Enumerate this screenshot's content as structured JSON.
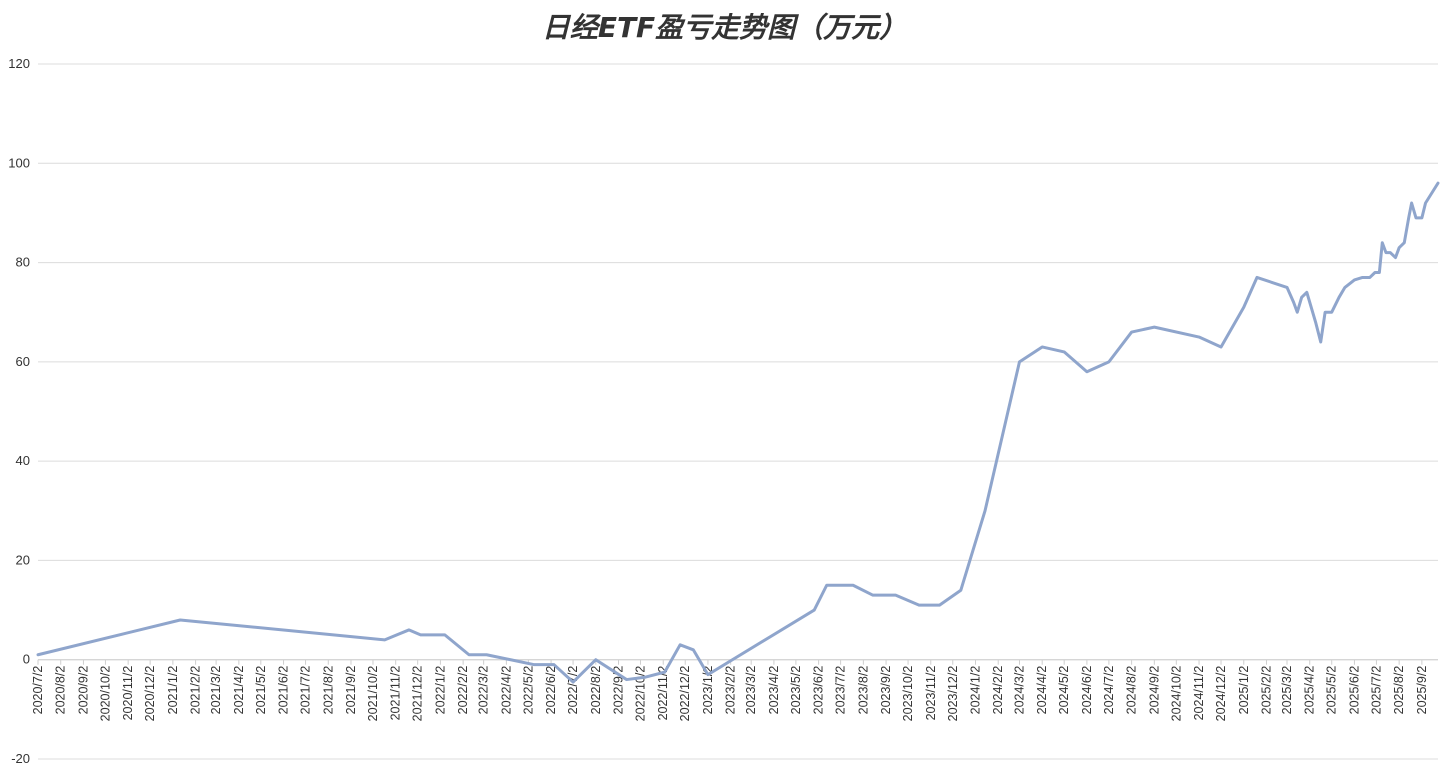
{
  "chart_data": {
    "type": "line",
    "title": "日经ETF盈亏走势图（万元）",
    "xlabel": "",
    "ylabel": "",
    "ylim": [
      -20,
      120
    ],
    "yticks": [
      "-20",
      "0",
      "20",
      "40",
      "60",
      "80",
      "100",
      "120"
    ],
    "grid": true,
    "line_color": "#8fa5cc",
    "categories": [
      "2020/7/2",
      "2020/8/2",
      "2020/9/2",
      "2020/10/2",
      "2020/11/2",
      "2020/12/2",
      "2021/1/2",
      "2021/2/2",
      "2021/3/2",
      "2021/4/2",
      "2021/5/2",
      "2021/6/2",
      "2021/7/2",
      "2021/8/2",
      "2021/9/2",
      "2021/10/2",
      "2021/11/2",
      "2021/12/2",
      "2022/1/2",
      "2022/2/2",
      "2022/3/2",
      "2022/4/2",
      "2022/5/2",
      "2022/6/2",
      "2022/7/2",
      "2022/8/2",
      "2022/9/2",
      "2022/10/2",
      "2022/11/2",
      "2022/12/2",
      "2023/1/2",
      "2023/2/2",
      "2023/3/2",
      "2023/4/2",
      "2023/5/2",
      "2023/6/2",
      "2023/7/2",
      "2023/8/2",
      "2023/9/2",
      "2023/10/2",
      "2023/11/2",
      "2023/12/2",
      "2024/1/2",
      "2024/2/2",
      "2024/3/2",
      "2024/4/2",
      "2024/5/2",
      "2024/6/2",
      "2024/7/2",
      "2024/8/2",
      "2024/9/2",
      "2024/10/2",
      "2024/11/2",
      "2024/12/2",
      "2025/1/2",
      "2025/2/2",
      "2025/3/2",
      "2025/4/2",
      "2025/5/2",
      "2025/6/2",
      "2025/7/2",
      "2025/8/2",
      "2025/9/2"
    ],
    "series": [
      {
        "points": [
          {
            "x": "2020/7/2",
            "y": 1
          },
          {
            "x": "2021/1/12",
            "y": 8
          },
          {
            "x": "2021/10/18",
            "y": 4
          },
          {
            "x": "2021/11/20",
            "y": 6
          },
          {
            "x": "2021/12/6",
            "y": 5
          },
          {
            "x": "2022/1/8",
            "y": 5
          },
          {
            "x": "2022/2/10",
            "y": 1
          },
          {
            "x": "2022/3/6",
            "y": 1
          },
          {
            "x": "2022/5/10",
            "y": -1
          },
          {
            "x": "2022/6/6",
            "y": -1
          },
          {
            "x": "2022/7/2",
            "y": -4.5
          },
          {
            "x": "2022/8/2",
            "y": 0
          },
          {
            "x": "2022/9/13",
            "y": -4
          },
          {
            "x": "2022/10/9",
            "y": -3.5
          },
          {
            "x": "2022/11/4",
            "y": -2.5
          },
          {
            "x": "2022/11/25",
            "y": 3
          },
          {
            "x": "2022/12/13",
            "y": 2
          },
          {
            "x": "2023/1/2",
            "y": -3
          },
          {
            "x": "2023/5/27",
            "y": 10
          },
          {
            "x": "2023/6/13",
            "y": 15
          },
          {
            "x": "2023/7/19",
            "y": 15
          },
          {
            "x": "2023/8/15",
            "y": 13
          },
          {
            "x": "2023/9/15",
            "y": 13
          },
          {
            "x": "2023/10/17",
            "y": 11
          },
          {
            "x": "2023/11/14",
            "y": 11
          },
          {
            "x": "2023/12/13",
            "y": 14
          },
          {
            "x": "2024/1/15",
            "y": 30
          },
          {
            "x": "2024/3/2",
            "y": 60
          },
          {
            "x": "2024/4/2",
            "y": 63
          },
          {
            "x": "2024/5/2",
            "y": 62
          },
          {
            "x": "2024/6/2",
            "y": 58
          },
          {
            "x": "2024/7/2",
            "y": 60
          },
          {
            "x": "2024/8/2",
            "y": 66
          },
          {
            "x": "2024/9/2",
            "y": 67
          },
          {
            "x": "2024/11/2",
            "y": 65
          },
          {
            "x": "2024/12/2",
            "y": 63
          },
          {
            "x": "2025/1/2",
            "y": 71
          },
          {
            "x": "2025/1/20",
            "y": 77
          },
          {
            "x": "2025/3/2",
            "y": 75
          },
          {
            "x": "2025/3/11",
            "y": 72
          },
          {
            "x": "2025/3/16",
            "y": 70
          },
          {
            "x": "2025/3/22",
            "y": 73
          },
          {
            "x": "2025/3/29",
            "y": 74
          },
          {
            "x": "2025/4/10",
            "y": 68
          },
          {
            "x": "2025/4/17",
            "y": 64
          },
          {
            "x": "2025/4/23",
            "y": 70
          },
          {
            "x": "2025/5/2",
            "y": 70
          },
          {
            "x": "2025/5/12",
            "y": 73
          },
          {
            "x": "2025/5/20",
            "y": 75
          },
          {
            "x": "2025/6/2",
            "y": 76.5
          },
          {
            "x": "2025/6/13",
            "y": 77
          },
          {
            "x": "2025/6/23",
            "y": 77
          },
          {
            "x": "2025/6/30",
            "y": 78
          },
          {
            "x": "2025/7/6",
            "y": 78
          },
          {
            "x": "2025/7/10",
            "y": 84
          },
          {
            "x": "2025/7/15",
            "y": 82
          },
          {
            "x": "2025/7/21",
            "y": 82
          },
          {
            "x": "2025/7/28",
            "y": 81
          },
          {
            "x": "2025/8/2",
            "y": 83
          },
          {
            "x": "2025/8/9",
            "y": 84
          },
          {
            "x": "2025/8/15",
            "y": 89
          },
          {
            "x": "2025/8/19",
            "y": 92
          },
          {
            "x": "2025/8/25",
            "y": 89
          },
          {
            "x": "2025/9/2",
            "y": 89
          },
          {
            "x": "2025/9/7",
            "y": 92
          },
          {
            "x": "2025/9/24",
            "y": 96
          }
        ]
      }
    ]
  }
}
